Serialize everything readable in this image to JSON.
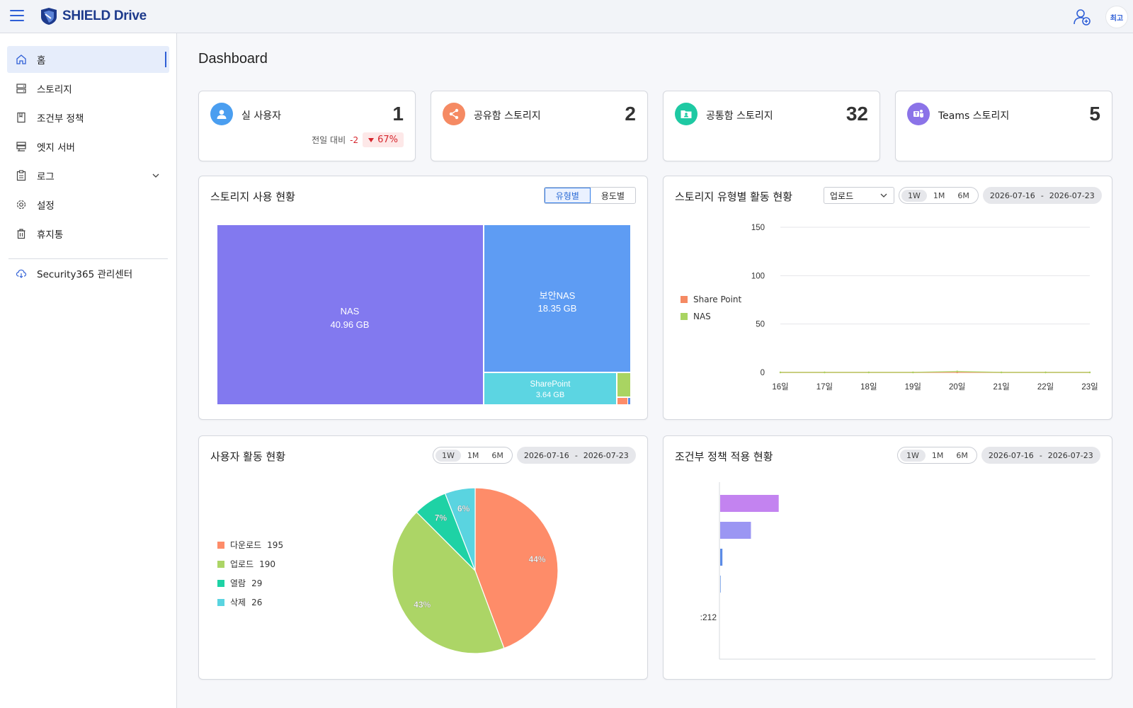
{
  "app": {
    "brand": "SHIELD Drive",
    "avatar_text": "최고"
  },
  "sidebar": {
    "items": [
      {
        "label": "홈",
        "icon": "home-icon",
        "active": true
      },
      {
        "label": "스토리지",
        "icon": "storage-icon"
      },
      {
        "label": "조건부 정책",
        "icon": "policy-icon"
      },
      {
        "label": "엣지 서버",
        "icon": "server-icon"
      },
      {
        "label": "로그",
        "icon": "log-icon",
        "expandable": true
      },
      {
        "label": "설정",
        "icon": "gear-icon"
      },
      {
        "label": "휴지통",
        "icon": "trash-icon"
      }
    ],
    "external": {
      "label": "Security365 관리센터",
      "icon": "cloud-icon"
    }
  },
  "page": {
    "title": "Dashboard"
  },
  "stats": [
    {
      "label": "실 사용자",
      "value": "1",
      "icon": "user-icon",
      "color": "#4a9ef0",
      "compare_label": "전일 대비",
      "compare_delta": "-2",
      "compare_pct": "67%"
    },
    {
      "label": "공유함 스토리지",
      "value": "2",
      "icon": "share-icon",
      "color": "#f58a63"
    },
    {
      "label": "공통함 스토리지",
      "value": "32",
      "icon": "folder-user-icon",
      "color": "#1ec9a3"
    },
    {
      "label": "Teams 스토리지",
      "value": "5",
      "icon": "teams-icon",
      "color": "#8b73e8"
    }
  ],
  "storage_usage": {
    "title": "스토리지 사용 현황",
    "tabs": [
      "유형별",
      "용도별"
    ],
    "active_tab": 0,
    "chart_data": {
      "type": "treemap",
      "unit": "GB",
      "items": [
        {
          "name": "NAS",
          "value": 40.96,
          "label": "40.96 GB",
          "color": "#8279ef"
        },
        {
          "name": "보안NAS",
          "value": 18.35,
          "label": "18.35 GB",
          "color": "#5e9cf3"
        },
        {
          "name": "SharePoint",
          "value": 3.64,
          "label": "3.64 GB",
          "color": "#5cd5e2"
        }
      ]
    }
  },
  "storage_activity": {
    "title": "스토리지 유형별 활동 현황",
    "select_value": "업로드",
    "periods": [
      "1W",
      "1M",
      "6M"
    ],
    "active_period": 0,
    "date_from": "2026-07-16",
    "date_sep": "-",
    "date_to": "2026-07-23",
    "chart_data": {
      "type": "line",
      "x": [
        "16일",
        "17일",
        "18일",
        "19일",
        "20일",
        "21일",
        "22일",
        "23일"
      ],
      "ylim": [
        0,
        150
      ],
      "yticks": [
        0,
        50,
        100,
        150
      ],
      "legend": "left",
      "grid": true,
      "series": [
        {
          "name": "Share Point",
          "color": "#f58a63",
          "values": [
            0,
            0,
            0,
            0,
            0,
            0,
            0,
            0
          ]
        },
        {
          "name": "NAS",
          "color": "#a9d462",
          "values": [
            0,
            0,
            0,
            0,
            1,
            0,
            0,
            0
          ]
        }
      ]
    }
  },
  "user_activity": {
    "title": "사용자 활동 현황",
    "periods": [
      "1W",
      "1M",
      "6M"
    ],
    "active_period": 0,
    "date_from": "2026-07-16",
    "date_sep": "-",
    "date_to": "2026-07-23",
    "chart_data": {
      "type": "pie",
      "legend": "left",
      "slices": [
        {
          "name": "다운로드",
          "value": 195,
          "pct": "44%",
          "color": "#fe8c69"
        },
        {
          "name": "업로드",
          "value": 190,
          "pct": "43%",
          "color": "#acd566"
        },
        {
          "name": "열람",
          "value": 29,
          "pct": "7%",
          "color": "#1ed2a5"
        },
        {
          "name": "삭제",
          "value": 26,
          "pct": "6%",
          "color": "#5ad4e0"
        }
      ]
    }
  },
  "policy_apply": {
    "title": "조건부 정책 적용 현황",
    "periods": [
      "1W",
      "1M",
      "6M"
    ],
    "active_period": 0,
    "date_from": "2026-07-16",
    "date_sep": "-",
    "date_to": "2026-07-23",
    "chart_data": {
      "type": "bar",
      "orientation": "horizontal",
      "xlim": [
        0,
        5000
      ],
      "bars": [
        {
          "value": 780,
          "color": "#c383f0"
        },
        {
          "value": 410,
          "color": "#9b96f3"
        },
        {
          "value": 30,
          "color": "#5b8be6"
        },
        {
          "value": 3,
          "color": "#8fb3ee"
        }
      ],
      "visible_label": ":212"
    }
  }
}
